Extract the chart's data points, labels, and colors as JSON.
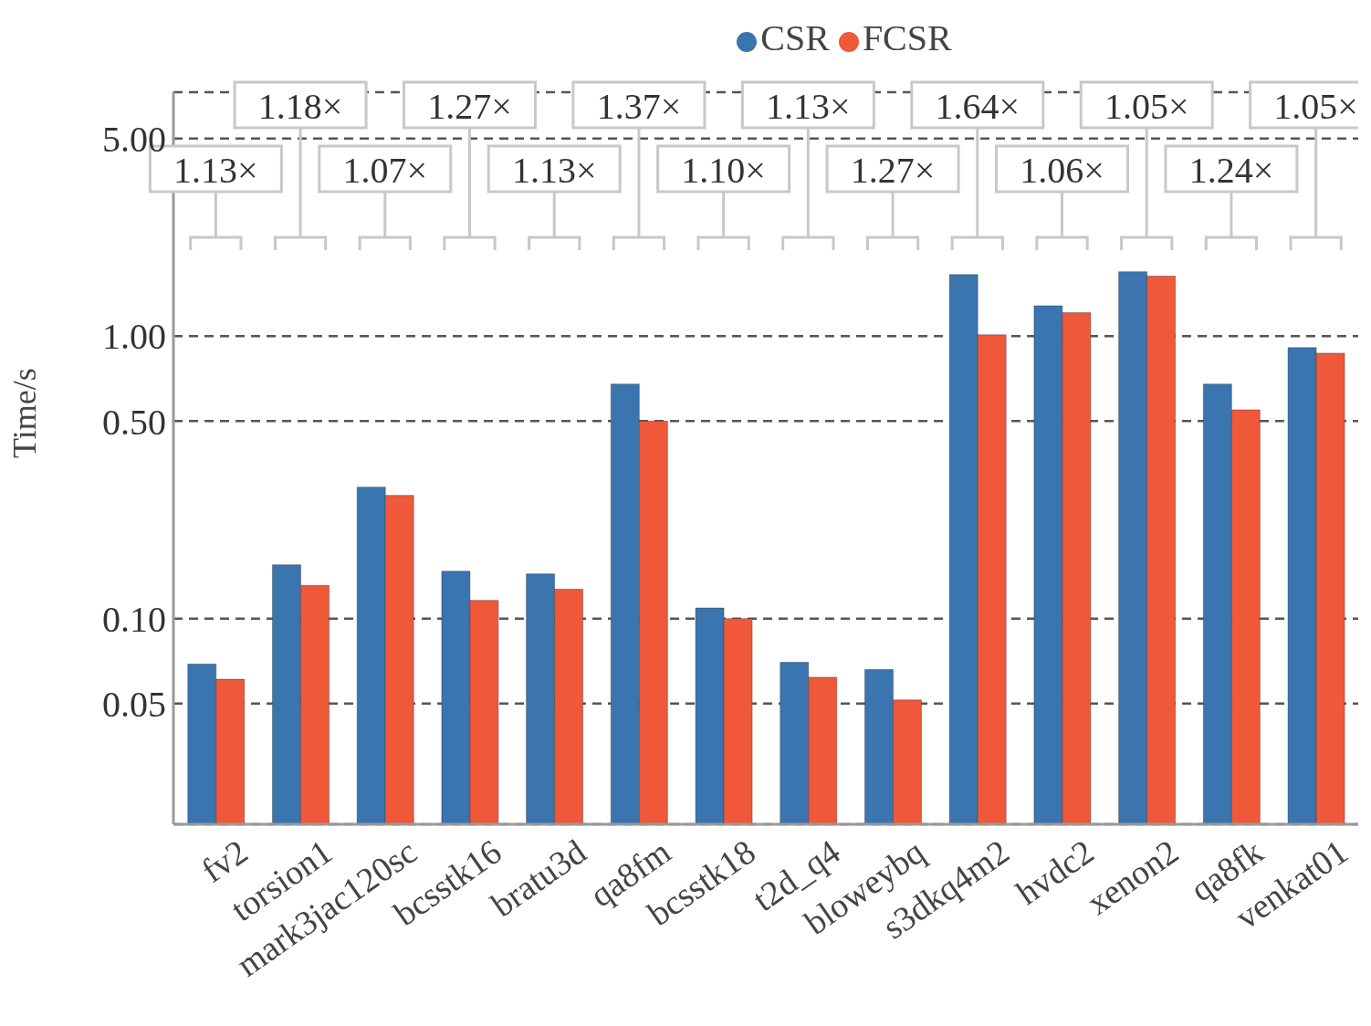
{
  "chart_data": {
    "type": "bar",
    "ylabel": "Time/s",
    "log": true,
    "grid": "y",
    "legend": "top",
    "categories": [
      "fv2",
      "torsion1",
      "mark3jac120sc",
      "bcsstk16",
      "bratu3d",
      "qa8fm",
      "bcsstk18",
      "t2d_q4",
      "bloweybq",
      "s3dkq4m2",
      "hvdc2",
      "xenon2",
      "qa8fk",
      "venkat01"
    ],
    "series": [
      {
        "name": "CSR",
        "color": "#3a75b0",
        "values": [
          0.069,
          0.155,
          0.292,
          0.147,
          0.144,
          0.676,
          0.109,
          0.07,
          0.066,
          1.65,
          1.28,
          1.69,
          0.676,
          0.91
        ]
      },
      {
        "name": "FCSR",
        "color": "#f0583a",
        "values": [
          0.061,
          0.131,
          0.273,
          0.116,
          0.127,
          0.5,
          0.1,
          0.062,
          0.0515,
          1.01,
          1.21,
          1.63,
          0.548,
          0.87
        ]
      }
    ],
    "ylim": [
      0.0187,
      7.3
    ],
    "yticks": [
      {
        "value": 0.05,
        "label": "0.05"
      },
      {
        "value": 0.1,
        "label": "0.10"
      },
      {
        "value": 0.5,
        "label": "0.50"
      },
      {
        "value": 1,
        "label": "1.00"
      },
      {
        "value": 5,
        "label": "5.00"
      }
    ],
    "annotations": [
      "1.13×",
      "1.18×",
      "1.07×",
      "1.27×",
      "1.13×",
      "1.37×",
      "1.10×",
      "1.13×",
      "1.27×",
      "1.64×",
      "1.06×",
      "1.05×",
      "1.24×",
      "1.05×"
    ]
  }
}
